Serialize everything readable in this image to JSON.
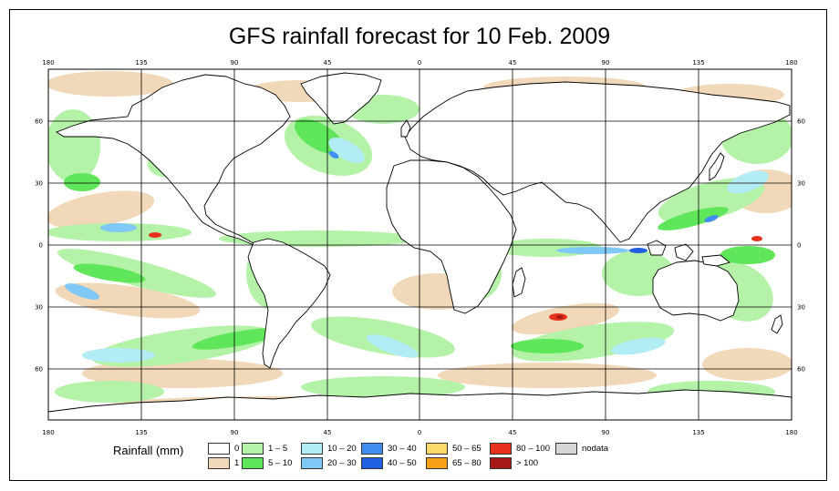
{
  "title": "GFS rainfall forecast for 10 Feb. 2009",
  "map": {
    "lon_ticks": [
      "180",
      "135",
      "90",
      "45",
      "0",
      "45",
      "90",
      "135",
      "180"
    ],
    "lat_ticks": [
      "60",
      "30",
      "0",
      "30",
      "60"
    ],
    "ocean_color": "#ffffff",
    "grid_color": "#000000"
  },
  "legend": {
    "title": "Rainfall (mm)",
    "items": [
      {
        "label": "0",
        "color": "#ffffff"
      },
      {
        "label": "1",
        "color": "#f1d8b8"
      },
      {
        "label": "1 – 5",
        "color": "#b4f2a8"
      },
      {
        "label": "5 – 10",
        "color": "#5fe65a"
      },
      {
        "label": "10 – 20",
        "color": "#b2ecf5"
      },
      {
        "label": "20 – 30",
        "color": "#80c8f5"
      },
      {
        "label": "30 – 40",
        "color": "#3f8ef0"
      },
      {
        "label": "40 – 50",
        "color": "#1f5fe0"
      },
      {
        "label": "50 – 65",
        "color": "#fdd96a"
      },
      {
        "label": "65 – 80",
        "color": "#f7a11a"
      },
      {
        "label": "80 – 100",
        "color": "#e8311c"
      },
      {
        "label": "> 100",
        "color": "#a81818"
      },
      {
        "label": "nodata",
        "color": "#d6d6d6"
      }
    ]
  }
}
